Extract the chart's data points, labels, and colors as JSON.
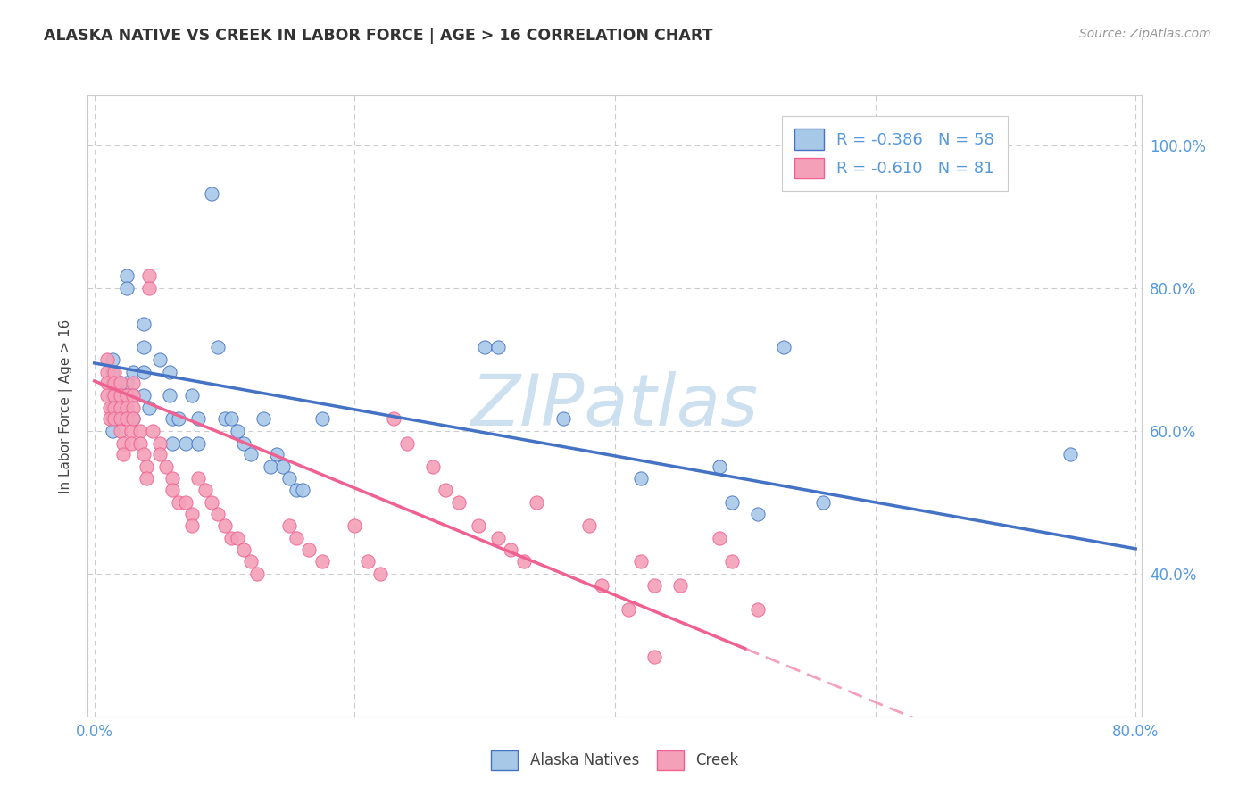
{
  "title": "ALASKA NATIVE VS CREEK IN LABOR FORCE | AGE > 16 CORRELATION CHART",
  "source": "Source: ZipAtlas.com",
  "ylabel": "In Labor Force | Age > 16",
  "xlim": [
    -0.005,
    0.805
  ],
  "ylim": [
    0.2,
    1.07
  ],
  "xticks": [
    0.0,
    0.2,
    0.4,
    0.6,
    0.8
  ],
  "xticklabels": [
    "0.0%",
    "",
    "",
    "",
    "80.0%"
  ],
  "yticks": [
    0.4,
    0.6,
    0.8,
    1.0
  ],
  "yticklabels_right": [
    "40.0%",
    "60.0%",
    "80.0%",
    "100.0%"
  ],
  "alaska_R": -0.386,
  "alaska_N": 58,
  "creek_R": -0.61,
  "creek_N": 81,
  "alaska_color": "#a8c8e8",
  "creek_color": "#f4a0b8",
  "alaska_line_color": "#4472c4",
  "creek_line_color": "#f06090",
  "watermark": "ZIPatlas",
  "watermark_color": "#cce0f0",
  "background_color": "#ffffff",
  "grid_color": "#cccccc",
  "tick_label_color": "#5599dd",
  "alaska_scatter": [
    [
      0.014,
      0.7
    ],
    [
      0.014,
      0.683
    ],
    [
      0.014,
      0.667
    ],
    [
      0.014,
      0.65
    ],
    [
      0.014,
      0.633
    ],
    [
      0.014,
      0.617
    ],
    [
      0.014,
      0.6
    ],
    [
      0.02,
      0.667
    ],
    [
      0.02,
      0.65
    ],
    [
      0.02,
      0.633
    ],
    [
      0.02,
      0.617
    ],
    [
      0.025,
      0.817
    ],
    [
      0.025,
      0.8
    ],
    [
      0.025,
      0.667
    ],
    [
      0.025,
      0.65
    ],
    [
      0.03,
      0.683
    ],
    [
      0.03,
      0.65
    ],
    [
      0.03,
      0.617
    ],
    [
      0.038,
      0.75
    ],
    [
      0.038,
      0.717
    ],
    [
      0.038,
      0.683
    ],
    [
      0.038,
      0.65
    ],
    [
      0.042,
      0.633
    ],
    [
      0.05,
      0.7
    ],
    [
      0.058,
      0.683
    ],
    [
      0.058,
      0.65
    ],
    [
      0.06,
      0.617
    ],
    [
      0.06,
      0.583
    ],
    [
      0.065,
      0.617
    ],
    [
      0.07,
      0.583
    ],
    [
      0.075,
      0.65
    ],
    [
      0.08,
      0.617
    ],
    [
      0.08,
      0.583
    ],
    [
      0.09,
      0.933
    ],
    [
      0.095,
      0.717
    ],
    [
      0.1,
      0.617
    ],
    [
      0.105,
      0.617
    ],
    [
      0.11,
      0.6
    ],
    [
      0.115,
      0.583
    ],
    [
      0.12,
      0.567
    ],
    [
      0.13,
      0.617
    ],
    [
      0.135,
      0.55
    ],
    [
      0.14,
      0.567
    ],
    [
      0.145,
      0.55
    ],
    [
      0.15,
      0.533
    ],
    [
      0.155,
      0.517
    ],
    [
      0.16,
      0.517
    ],
    [
      0.175,
      0.617
    ],
    [
      0.3,
      0.717
    ],
    [
      0.31,
      0.717
    ],
    [
      0.36,
      0.617
    ],
    [
      0.42,
      0.533
    ],
    [
      0.48,
      0.55
    ],
    [
      0.49,
      0.5
    ],
    [
      0.51,
      0.483
    ],
    [
      0.53,
      0.717
    ],
    [
      0.56,
      0.5
    ],
    [
      0.75,
      0.567
    ]
  ],
  "creek_scatter": [
    [
      0.01,
      0.7
    ],
    [
      0.01,
      0.683
    ],
    [
      0.01,
      0.667
    ],
    [
      0.01,
      0.65
    ],
    [
      0.012,
      0.633
    ],
    [
      0.012,
      0.617
    ],
    [
      0.015,
      0.683
    ],
    [
      0.015,
      0.667
    ],
    [
      0.015,
      0.65
    ],
    [
      0.015,
      0.633
    ],
    [
      0.015,
      0.617
    ],
    [
      0.02,
      0.667
    ],
    [
      0.02,
      0.65
    ],
    [
      0.02,
      0.633
    ],
    [
      0.02,
      0.617
    ],
    [
      0.02,
      0.6
    ],
    [
      0.022,
      0.583
    ],
    [
      0.022,
      0.567
    ],
    [
      0.025,
      0.65
    ],
    [
      0.025,
      0.633
    ],
    [
      0.025,
      0.617
    ],
    [
      0.028,
      0.6
    ],
    [
      0.028,
      0.583
    ],
    [
      0.03,
      0.667
    ],
    [
      0.03,
      0.65
    ],
    [
      0.03,
      0.633
    ],
    [
      0.03,
      0.617
    ],
    [
      0.035,
      0.6
    ],
    [
      0.035,
      0.583
    ],
    [
      0.038,
      0.567
    ],
    [
      0.04,
      0.55
    ],
    [
      0.04,
      0.533
    ],
    [
      0.042,
      0.817
    ],
    [
      0.042,
      0.8
    ],
    [
      0.045,
      0.6
    ],
    [
      0.05,
      0.583
    ],
    [
      0.05,
      0.567
    ],
    [
      0.055,
      0.55
    ],
    [
      0.06,
      0.533
    ],
    [
      0.06,
      0.517
    ],
    [
      0.065,
      0.5
    ],
    [
      0.07,
      0.5
    ],
    [
      0.075,
      0.483
    ],
    [
      0.075,
      0.467
    ],
    [
      0.08,
      0.533
    ],
    [
      0.085,
      0.517
    ],
    [
      0.09,
      0.5
    ],
    [
      0.095,
      0.483
    ],
    [
      0.1,
      0.467
    ],
    [
      0.105,
      0.45
    ],
    [
      0.11,
      0.45
    ],
    [
      0.115,
      0.433
    ],
    [
      0.12,
      0.417
    ],
    [
      0.125,
      0.4
    ],
    [
      0.15,
      0.467
    ],
    [
      0.155,
      0.45
    ],
    [
      0.165,
      0.433
    ],
    [
      0.175,
      0.417
    ],
    [
      0.2,
      0.467
    ],
    [
      0.21,
      0.417
    ],
    [
      0.22,
      0.4
    ],
    [
      0.23,
      0.617
    ],
    [
      0.24,
      0.583
    ],
    [
      0.26,
      0.55
    ],
    [
      0.27,
      0.517
    ],
    [
      0.28,
      0.5
    ],
    [
      0.295,
      0.467
    ],
    [
      0.31,
      0.45
    ],
    [
      0.32,
      0.433
    ],
    [
      0.33,
      0.417
    ],
    [
      0.34,
      0.5
    ],
    [
      0.38,
      0.467
    ],
    [
      0.39,
      0.383
    ],
    [
      0.41,
      0.35
    ],
    [
      0.42,
      0.417
    ],
    [
      0.43,
      0.383
    ],
    [
      0.45,
      0.383
    ],
    [
      0.48,
      0.45
    ],
    [
      0.49,
      0.417
    ],
    [
      0.51,
      0.35
    ],
    [
      0.43,
      0.283
    ]
  ],
  "alaska_line": [
    [
      0.0,
      0.695
    ],
    [
      0.8,
      0.435
    ]
  ],
  "creek_line_solid": [
    [
      0.0,
      0.67
    ],
    [
      0.5,
      0.295
    ]
  ],
  "creek_line_dash": [
    [
      0.5,
      0.295
    ],
    [
      0.8,
      0.07
    ]
  ]
}
